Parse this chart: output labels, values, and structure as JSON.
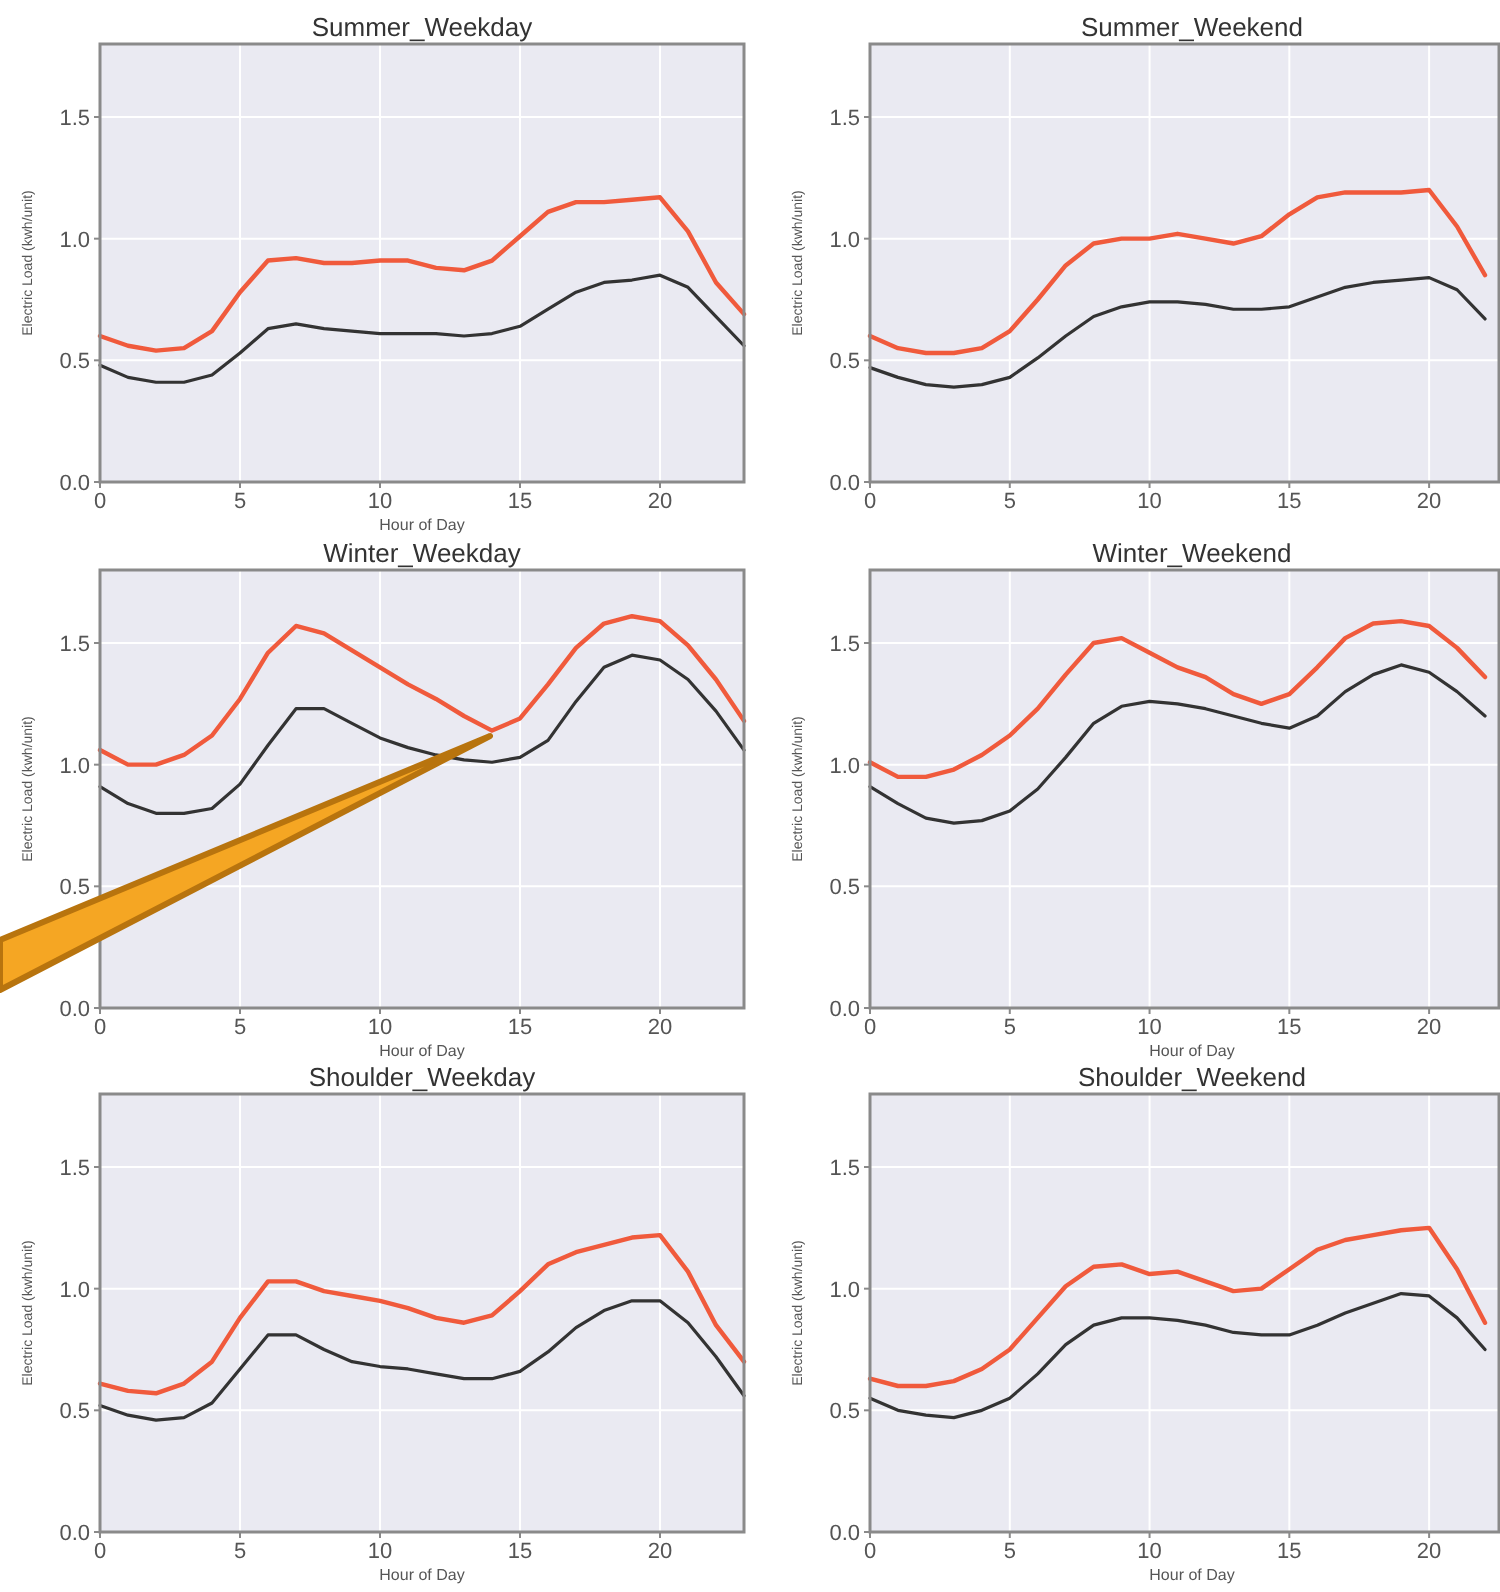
{
  "chart_data": [
    {
      "type": "line",
      "title": "Summer_Weekday",
      "xlabel": "Hour of Day",
      "ylabel": "Electric Load (kwh/unit)",
      "x": [
        0,
        1,
        2,
        3,
        4,
        5,
        6,
        7,
        8,
        9,
        10,
        11,
        12,
        13,
        14,
        15,
        16,
        17,
        18,
        19,
        20,
        21,
        22,
        23
      ],
      "xlim": [
        0,
        23
      ],
      "xticks": [
        0,
        5,
        10,
        15,
        20
      ],
      "ylim": [
        0,
        1.8
      ],
      "yticks": [
        {
          "value": 0,
          "label": "0.0"
        },
        {
          "value": 0.5,
          "label": "0.5"
        },
        {
          "value": 1,
          "label": "1.0"
        },
        {
          "value": 1.5,
          "label": "1.5"
        }
      ],
      "grid": true,
      "line_style": "solid",
      "series": [
        {
          "color": "#f05a3c",
          "values": [
            0.6,
            0.56,
            0.54,
            0.55,
            0.62,
            0.78,
            0.91,
            0.92,
            0.9,
            0.9,
            0.91,
            0.91,
            0.88,
            0.87,
            0.91,
            1.01,
            1.11,
            1.15,
            1.15,
            1.16,
            1.17,
            1.03,
            0.82,
            0.69
          ]
        },
        {
          "color": "#333333",
          "values": [
            0.48,
            0.43,
            0.41,
            0.41,
            0.44,
            0.53,
            0.63,
            0.65,
            0.63,
            0.62,
            0.61,
            0.61,
            0.61,
            0.6,
            0.61,
            0.64,
            0.71,
            0.78,
            0.82,
            0.83,
            0.85,
            0.8,
            0.68,
            0.56
          ]
        }
      ]
    },
    {
      "type": "line",
      "title": "Summer_Weekend",
      "ylabel": "Electric Load (kwh/unit)",
      "x": [
        0,
        1,
        2,
        3,
        4,
        5,
        6,
        7,
        8,
        9,
        10,
        11,
        12,
        13,
        14,
        15,
        16,
        17,
        18,
        19,
        20,
        21,
        22
      ],
      "xlim": [
        0,
        22.5
      ],
      "xticks": [
        0,
        5,
        10,
        15,
        20
      ],
      "ylim": [
        0,
        1.8
      ],
      "yticks": [
        {
          "value": 0,
          "label": "0.0"
        },
        {
          "value": 0.5,
          "label": "0.5"
        },
        {
          "value": 1,
          "label": "1.0"
        },
        {
          "value": 1.5,
          "label": "1.5"
        }
      ],
      "grid": true,
      "line_style": "solid",
      "series": [
        {
          "color": "#f05a3c",
          "values": [
            0.6,
            0.55,
            0.53,
            0.53,
            0.55,
            0.62,
            0.75,
            0.89,
            0.98,
            1.0,
            1.0,
            1.02,
            1.0,
            0.98,
            1.01,
            1.1,
            1.17,
            1.19,
            1.19,
            1.19,
            1.2,
            1.05,
            0.85
          ]
        },
        {
          "color": "#333333",
          "values": [
            0.47,
            0.43,
            0.4,
            0.39,
            0.4,
            0.43,
            0.51,
            0.6,
            0.68,
            0.72,
            0.74,
            0.74,
            0.73,
            0.71,
            0.71,
            0.72,
            0.76,
            0.8,
            0.82,
            0.83,
            0.84,
            0.79,
            0.67
          ]
        }
      ]
    },
    {
      "type": "line",
      "title": "Winter_Weekday",
      "xlabel": "Hour of Day",
      "ylabel": "Electric Load (kwh/unit)",
      "x": [
        0,
        1,
        2,
        3,
        4,
        5,
        6,
        7,
        8,
        9,
        10,
        11,
        12,
        13,
        14,
        15,
        16,
        17,
        18,
        19,
        20,
        21,
        22,
        23
      ],
      "xlim": [
        0,
        23
      ],
      "xticks": [
        0,
        5,
        10,
        15,
        20
      ],
      "ylim": [
        0,
        1.8
      ],
      "yticks": [
        {
          "value": 0,
          "label": "0.0"
        },
        {
          "value": 0.5,
          "label": "0.5"
        },
        {
          "value": 1,
          "label": "1.0"
        },
        {
          "value": 1.5,
          "label": "1.5"
        }
      ],
      "grid": true,
      "line_style": "solid",
      "series": [
        {
          "color": "#f05a3c",
          "values": [
            1.06,
            1.0,
            1.0,
            1.04,
            1.12,
            1.27,
            1.46,
            1.57,
            1.54,
            1.47,
            1.4,
            1.33,
            1.27,
            1.2,
            1.14,
            1.19,
            1.33,
            1.48,
            1.58,
            1.61,
            1.59,
            1.49,
            1.35,
            1.18
          ]
        },
        {
          "color": "#333333",
          "values": [
            0.91,
            0.84,
            0.8,
            0.8,
            0.82,
            0.92,
            1.08,
            1.23,
            1.23,
            1.17,
            1.11,
            1.07,
            1.04,
            1.02,
            1.01,
            1.03,
            1.1,
            1.26,
            1.4,
            1.45,
            1.43,
            1.35,
            1.22,
            1.06
          ]
        }
      ]
    },
    {
      "type": "line",
      "title": "Winter_Weekend",
      "xlabel": "Hour of Day",
      "ylabel": "Electric Load (kwh/unit)",
      "x": [
        0,
        1,
        2,
        3,
        4,
        5,
        6,
        7,
        8,
        9,
        10,
        11,
        12,
        13,
        14,
        15,
        16,
        17,
        18,
        19,
        20,
        21,
        22
      ],
      "xlim": [
        0,
        22.5
      ],
      "xticks": [
        0,
        5,
        10,
        15,
        20
      ],
      "ylim": [
        0,
        1.8
      ],
      "yticks": [
        {
          "value": 0,
          "label": "0.0"
        },
        {
          "value": 0.5,
          "label": "0.5"
        },
        {
          "value": 1,
          "label": "1.0"
        },
        {
          "value": 1.5,
          "label": "1.5"
        }
      ],
      "grid": true,
      "line_style": "solid",
      "series": [
        {
          "color": "#f05a3c",
          "values": [
            1.01,
            0.95,
            0.95,
            0.98,
            1.04,
            1.12,
            1.23,
            1.37,
            1.5,
            1.52,
            1.46,
            1.4,
            1.36,
            1.29,
            1.25,
            1.29,
            1.4,
            1.52,
            1.58,
            1.59,
            1.57,
            1.48,
            1.36
          ]
        },
        {
          "color": "#333333",
          "values": [
            0.91,
            0.84,
            0.78,
            0.76,
            0.77,
            0.81,
            0.9,
            1.03,
            1.17,
            1.24,
            1.26,
            1.25,
            1.23,
            1.2,
            1.17,
            1.15,
            1.2,
            1.3,
            1.37,
            1.41,
            1.38,
            1.3,
            1.2
          ]
        }
      ]
    },
    {
      "type": "line",
      "title": "Shoulder_Weekday",
      "xlabel": "Hour of Day",
      "ylabel": "Electric Load (kwh/unit)",
      "x": [
        0,
        1,
        2,
        3,
        4,
        5,
        6,
        7,
        8,
        9,
        10,
        11,
        12,
        13,
        14,
        15,
        16,
        17,
        18,
        19,
        20,
        21,
        22,
        23
      ],
      "xlim": [
        0,
        23
      ],
      "xticks": [
        0,
        5,
        10,
        15,
        20
      ],
      "ylim": [
        0,
        1.8
      ],
      "yticks": [
        {
          "value": 0,
          "label": "0.0"
        },
        {
          "value": 0.5,
          "label": "0.5"
        },
        {
          "value": 1,
          "label": "1.0"
        },
        {
          "value": 1.5,
          "label": "1.5"
        }
      ],
      "grid": true,
      "line_style": "solid",
      "series": [
        {
          "color": "#f05a3c",
          "values": [
            0.61,
            0.58,
            0.57,
            0.61,
            0.7,
            0.88,
            1.03,
            1.03,
            0.99,
            0.97,
            0.95,
            0.92,
            0.88,
            0.86,
            0.89,
            0.99,
            1.1,
            1.15,
            1.18,
            1.21,
            1.22,
            1.07,
            0.85,
            0.7
          ]
        },
        {
          "color": "#333333",
          "values": [
            0.52,
            0.48,
            0.46,
            0.47,
            0.53,
            0.67,
            0.81,
            0.81,
            0.75,
            0.7,
            0.68,
            0.67,
            0.65,
            0.63,
            0.63,
            0.66,
            0.74,
            0.84,
            0.91,
            0.95,
            0.95,
            0.86,
            0.72,
            0.56
          ]
        }
      ]
    },
    {
      "type": "line",
      "title": "Shoulder_Weekend",
      "xlabel": "Hour of Day",
      "ylabel": "Electric Load (kwh/unit)",
      "x": [
        0,
        1,
        2,
        3,
        4,
        5,
        6,
        7,
        8,
        9,
        10,
        11,
        12,
        13,
        14,
        15,
        16,
        17,
        18,
        19,
        20,
        21,
        22
      ],
      "xlim": [
        0,
        22.5
      ],
      "xticks": [
        0,
        5,
        10,
        15,
        20
      ],
      "ylim": [
        0,
        1.8
      ],
      "yticks": [
        {
          "value": 0,
          "label": "0.0"
        },
        {
          "value": 0.5,
          "label": "0.5"
        },
        {
          "value": 1,
          "label": "1.0"
        },
        {
          "value": 1.5,
          "label": "1.5"
        }
      ],
      "grid": true,
      "line_style": "solid",
      "series": [
        {
          "color": "#f05a3c",
          "values": [
            0.63,
            0.6,
            0.6,
            0.62,
            0.67,
            0.75,
            0.88,
            1.01,
            1.09,
            1.1,
            1.06,
            1.07,
            1.03,
            0.99,
            1.0,
            1.08,
            1.16,
            1.2,
            1.22,
            1.24,
            1.25,
            1.08,
            0.86
          ]
        },
        {
          "color": "#333333",
          "values": [
            0.55,
            0.5,
            0.48,
            0.47,
            0.5,
            0.55,
            0.65,
            0.77,
            0.85,
            0.88,
            0.88,
            0.87,
            0.85,
            0.82,
            0.81,
            0.81,
            0.85,
            0.9,
            0.94,
            0.98,
            0.97,
            0.88,
            0.75
          ]
        }
      ]
    }
  ]
}
